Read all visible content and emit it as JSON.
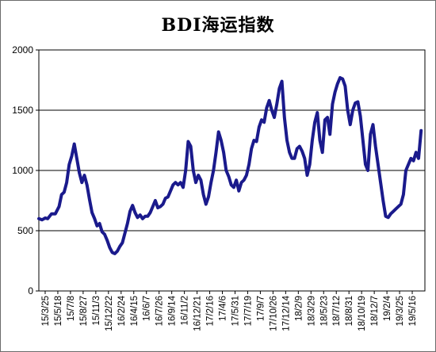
{
  "chart_data": {
    "type": "line",
    "title": "BDI海运指数",
    "xlabel": "",
    "ylabel": "",
    "ylim": [
      0,
      2000
    ],
    "yticks": [
      "0",
      "500",
      "1000",
      "1500",
      "2000"
    ],
    "grid": true,
    "legend": "none",
    "line_color": "#1a1a8c",
    "x_tick_labels": [
      "15/3/25",
      "15/5/18",
      "15/7/8",
      "15/8/27",
      "15/11/3",
      "15/12/22",
      "16/2/24",
      "16/4/15",
      "16/6/7",
      "16/7/26",
      "16/9/14",
      "16/11/2",
      "16/12/21",
      "17/2/16",
      "17/4/6",
      "17/5/31",
      "17/7/19",
      "17/9/7",
      "17/10/26",
      "17/12/14",
      "18/2/9",
      "18/3/29",
      "18/5/23",
      "18/7/12",
      "18/8/31",
      "18/10/19",
      "18/12/7",
      "19/2/4",
      "19/3/25",
      "19/5/16"
    ],
    "series": [
      {
        "values": [
          [
            0,
            600
          ],
          [
            0.25,
            590
          ],
          [
            0.5,
            605
          ],
          [
            0.7,
            600
          ],
          [
            1.0,
            640
          ],
          [
            1.3,
            640
          ],
          [
            1.6,
            700
          ],
          [
            1.8,
            800
          ],
          [
            2.0,
            820
          ],
          [
            2.2,
            900
          ],
          [
            2.4,
            1050
          ],
          [
            2.6,
            1120
          ],
          [
            2.8,
            1220
          ],
          [
            3.0,
            1100
          ],
          [
            3.2,
            980
          ],
          [
            3.4,
            900
          ],
          [
            3.6,
            960
          ],
          [
            3.8,
            880
          ],
          [
            4.0,
            760
          ],
          [
            4.2,
            650
          ],
          [
            4.4,
            600
          ],
          [
            4.6,
            540
          ],
          [
            4.8,
            560
          ],
          [
            5.0,
            490
          ],
          [
            5.2,
            470
          ],
          [
            5.4,
            420
          ],
          [
            5.6,
            360
          ],
          [
            5.8,
            320
          ],
          [
            6.0,
            310
          ],
          [
            6.2,
            330
          ],
          [
            6.4,
            370
          ],
          [
            6.6,
            400
          ],
          [
            6.8,
            480
          ],
          [
            7.0,
            560
          ],
          [
            7.2,
            660
          ],
          [
            7.4,
            710
          ],
          [
            7.6,
            650
          ],
          [
            7.8,
            610
          ],
          [
            8.0,
            630
          ],
          [
            8.2,
            600
          ],
          [
            8.4,
            620
          ],
          [
            8.6,
            620
          ],
          [
            8.8,
            650
          ],
          [
            9.0,
            700
          ],
          [
            9.2,
            750
          ],
          [
            9.4,
            690
          ],
          [
            9.6,
            700
          ],
          [
            9.8,
            720
          ],
          [
            10.0,
            770
          ],
          [
            10.2,
            780
          ],
          [
            10.4,
            830
          ],
          [
            10.6,
            880
          ],
          [
            10.8,
            900
          ],
          [
            11.0,
            880
          ],
          [
            11.2,
            900
          ],
          [
            11.4,
            860
          ],
          [
            11.6,
            1000
          ],
          [
            11.8,
            1240
          ],
          [
            12.0,
            1200
          ],
          [
            12.2,
            1000
          ],
          [
            12.4,
            900
          ],
          [
            12.6,
            960
          ],
          [
            12.8,
            920
          ],
          [
            13.0,
            800
          ],
          [
            13.2,
            720
          ],
          [
            13.4,
            780
          ],
          [
            13.6,
            900
          ],
          [
            13.8,
            1000
          ],
          [
            14.0,
            1150
          ],
          [
            14.2,
            1320
          ],
          [
            14.4,
            1250
          ],
          [
            14.6,
            1150
          ],
          [
            14.8,
            1000
          ],
          [
            15.0,
            950
          ],
          [
            15.2,
            880
          ],
          [
            15.4,
            860
          ],
          [
            15.6,
            920
          ],
          [
            15.8,
            830
          ],
          [
            16.0,
            900
          ],
          [
            16.2,
            920
          ],
          [
            16.4,
            960
          ],
          [
            16.6,
            1050
          ],
          [
            16.8,
            1180
          ],
          [
            17.0,
            1250
          ],
          [
            17.2,
            1240
          ],
          [
            17.4,
            1360
          ],
          [
            17.6,
            1420
          ],
          [
            17.8,
            1400
          ],
          [
            18.0,
            1520
          ],
          [
            18.2,
            1580
          ],
          [
            18.4,
            1500
          ],
          [
            18.6,
            1440
          ],
          [
            18.8,
            1550
          ],
          [
            19.0,
            1680
          ],
          [
            19.2,
            1740
          ],
          [
            19.4,
            1440
          ],
          [
            19.6,
            1250
          ],
          [
            19.8,
            1150
          ],
          [
            20.0,
            1100
          ],
          [
            20.2,
            1100
          ],
          [
            20.4,
            1180
          ],
          [
            20.6,
            1200
          ],
          [
            20.8,
            1160
          ],
          [
            21.0,
            1100
          ],
          [
            21.2,
            960
          ],
          [
            21.4,
            1050
          ],
          [
            21.6,
            1250
          ],
          [
            21.8,
            1400
          ],
          [
            22.0,
            1480
          ],
          [
            22.2,
            1250
          ],
          [
            22.4,
            1150
          ],
          [
            22.6,
            1420
          ],
          [
            22.8,
            1440
          ],
          [
            23.0,
            1300
          ],
          [
            23.2,
            1550
          ],
          [
            23.4,
            1650
          ],
          [
            23.6,
            1720
          ],
          [
            23.8,
            1770
          ],
          [
            24.0,
            1760
          ],
          [
            24.2,
            1700
          ],
          [
            24.4,
            1500
          ],
          [
            24.6,
            1380
          ],
          [
            24.8,
            1500
          ],
          [
            25.0,
            1560
          ],
          [
            25.2,
            1570
          ],
          [
            25.4,
            1450
          ],
          [
            25.6,
            1250
          ],
          [
            25.8,
            1050
          ],
          [
            26.0,
            1000
          ],
          [
            26.2,
            1300
          ],
          [
            26.4,
            1380
          ],
          [
            26.6,
            1200
          ],
          [
            26.8,
            1050
          ],
          [
            27.0,
            900
          ],
          [
            27.2,
            750
          ],
          [
            27.4,
            620
          ],
          [
            27.6,
            610
          ],
          [
            27.8,
            640
          ],
          [
            28.0,
            660
          ],
          [
            28.2,
            680
          ],
          [
            28.4,
            700
          ],
          [
            28.6,
            720
          ],
          [
            28.8,
            800
          ],
          [
            29.0,
            1000
          ],
          [
            29.2,
            1050
          ],
          [
            29.4,
            1100
          ],
          [
            29.6,
            1080
          ],
          [
            29.8,
            1150
          ],
          [
            30.0,
            1100
          ],
          [
            30.2,
            1330
          ]
        ]
      }
    ]
  }
}
